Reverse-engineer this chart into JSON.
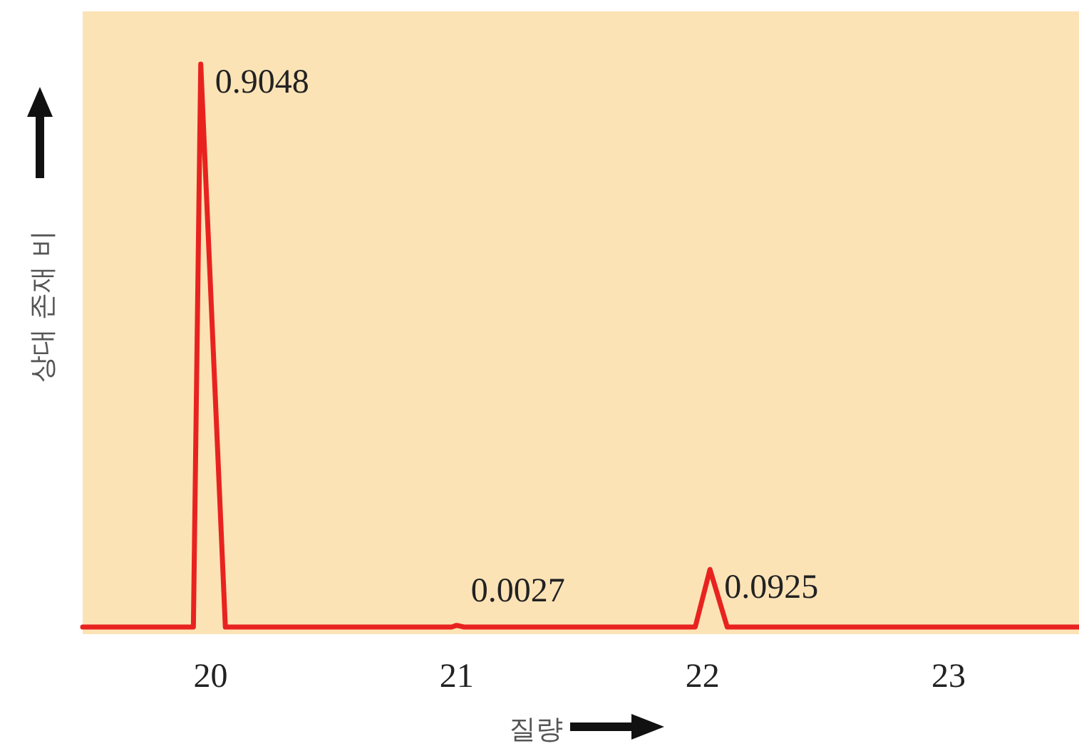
{
  "chart_data": {
    "type": "line",
    "xlabel": "질량",
    "ylabel": "상대 존재 비",
    "xlim": [
      19.48,
      23.53
    ],
    "xticks": [
      20,
      21,
      22,
      23
    ],
    "tick_labels": "x",
    "x": [
      19.48,
      19.93,
      19.96,
      20.06,
      20.98,
      21.0,
      21.03,
      21.97,
      22.03,
      22.1,
      23.53
    ],
    "series": [
      {
        "color": "#e8231f",
        "values": [
          0,
          0,
          0.9048,
          0,
          0,
          0.0027,
          0,
          0,
          0.0925,
          0,
          0
        ],
        "value_labels": [
          null,
          null,
          "0.9048",
          null,
          null,
          "0.0027",
          null,
          null,
          "0.0925",
          null,
          null
        ]
      }
    ]
  }
}
